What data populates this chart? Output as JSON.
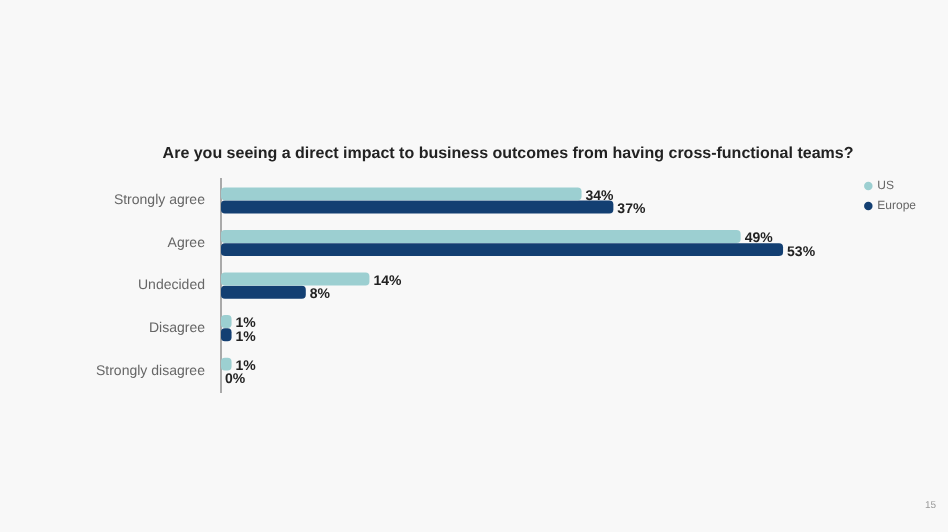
{
  "chart_data": {
    "type": "bar",
    "orientation": "horizontal",
    "title": "Are you seeing a direct impact to business outcomes from having cross-functional teams?",
    "categories": [
      "Strongly agree",
      "Agree",
      "Undecided",
      "Disagree",
      "Strongly disagree"
    ],
    "series": [
      {
        "name": "US",
        "color": "#9ccfd1",
        "values": [
          34,
          49,
          14,
          1,
          1
        ],
        "value_labels": [
          "34%",
          "49%",
          "14%",
          "1%",
          "1%"
        ]
      },
      {
        "name": "Europe",
        "color": "#133f72",
        "values": [
          37,
          53,
          8,
          1,
          0
        ],
        "value_labels": [
          "37%",
          "53%",
          "8%",
          "1%",
          "0%"
        ]
      }
    ],
    "tick_labels": "y",
    "legend": "right",
    "annotations": [
      "15"
    ]
  }
}
